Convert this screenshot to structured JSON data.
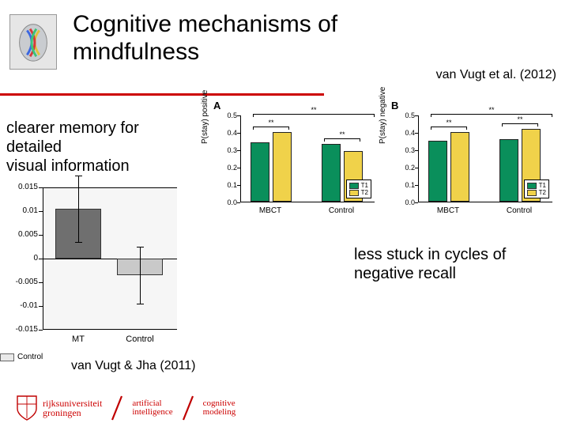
{
  "title_line1": "Cognitive mechanisms of",
  "title_line2": "mindfulness",
  "citation_top": "van Vugt et al. (2012)",
  "text_left_l1": "clearer memory for",
  "text_left_l2": "detailed",
  "text_left_l3": "visual information",
  "text_right_l1": "less stuck in cycles of",
  "text_right_l2": "negative recall",
  "citation_left": "van Vugt & Jha (2011)",
  "footer": {
    "university_l1": "rijksuniversiteit",
    "university_l2": "groningen",
    "tag1_l1": "artificial",
    "tag1_l2": "intelligence",
    "tag2_l1": "cognitive",
    "tag2_l2": "modeling",
    "crest_color": "#c00000",
    "slash_color": "#c00000"
  },
  "chart_bl": {
    "type": "bar",
    "categories": [
      "MT",
      "Control"
    ],
    "values": [
      0.0105,
      -0.0035
    ],
    "err": [
      0.007,
      0.006
    ],
    "colors": [
      "#6f6f6f",
      "#c9c9c9"
    ],
    "ylim": [
      -0.015,
      0.015
    ],
    "yticks": [
      -0.015,
      -0.01,
      -0.005,
      0,
      0.005,
      0.01,
      0.015
    ],
    "ylabels": [
      "-0.015",
      "-0.01",
      "-0.005",
      "0",
      "0.005",
      "0.01",
      "0.015"
    ],
    "legend": "Control",
    "plot_bg": "#f6f6f6"
  },
  "panelA": {
    "letter": "A",
    "type": "bar",
    "ylabel": "P(stay) positive",
    "ylim": [
      0,
      0.5
    ],
    "yticks": [
      0,
      0.1,
      0.2,
      0.3,
      0.4,
      0.5
    ],
    "groups": [
      "MBCT",
      "Control"
    ],
    "series": [
      "T1",
      "T2"
    ],
    "values": [
      [
        0.34,
        0.4
      ],
      [
        0.33,
        0.29
      ]
    ],
    "colors": [
      "#0a8f5b",
      "#f0d24a"
    ],
    "sig_all": "**",
    "sig_groups": [
      "**",
      "**"
    ]
  },
  "panelB": {
    "letter": "B",
    "type": "bar",
    "ylabel": "P(stay) negative",
    "ylim": [
      0,
      0.5
    ],
    "yticks": [
      0,
      0.1,
      0.2,
      0.3,
      0.4,
      0.5
    ],
    "groups": [
      "MBCT",
      "Control"
    ],
    "series": [
      "T1",
      "T2"
    ],
    "values": [
      [
        0.35,
        0.4
      ],
      [
        0.36,
        0.42
      ]
    ],
    "colors": [
      "#0a8f5b",
      "#f0d24a"
    ],
    "sig_all": "**",
    "sig_groups": [
      "**",
      "**"
    ]
  },
  "colors": {
    "rule": "#c00000",
    "text": "#000000"
  }
}
